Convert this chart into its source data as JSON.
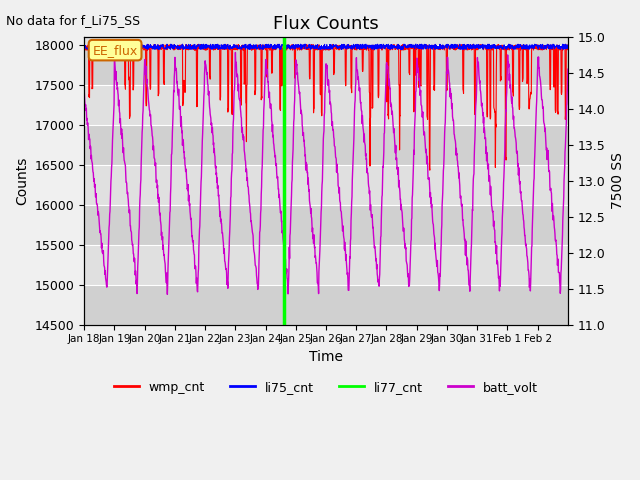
{
  "title": "Flux Counts",
  "subtitle": "No data for f_Li75_SS",
  "xlabel": "Time",
  "ylabel_left": "Counts",
  "ylabel_right": "7500 SS",
  "ylim_left": [
    14500,
    18100
  ],
  "ylim_right": [
    11.0,
    15.0
  ],
  "annotation_text": "EE_flux",
  "x_tick_labels": [
    "Jan 18",
    "Jan 19",
    "Jan 20",
    "Jan 21",
    "Jan 22",
    "Jan 23",
    "Jan 24",
    "Jan 25",
    "Jan 26",
    "Jan 27",
    "Jan 28",
    "Jan 29",
    "Jan 30",
    "Jan 31",
    "Feb 1",
    "Feb 2"
  ],
  "yticks_left": [
    14500,
    15000,
    15500,
    16000,
    16500,
    17000,
    17500,
    18000
  ],
  "yticks_right": [
    11.0,
    11.5,
    12.0,
    12.5,
    13.0,
    13.5,
    14.0,
    14.5,
    15.0
  ],
  "fig_facecolor": "#f0f0f0",
  "ax_facecolor": "#e0e0e0",
  "band_colors": [
    "#d0d0d0",
    "#e0e0e0"
  ],
  "wmp_color": "#ff0000",
  "li75_color": "#0000ff",
  "li77_color": "#00ff00",
  "batt_color": "#cc00cc",
  "legend_entries": [
    "wmp_cnt",
    "li75_cnt",
    "li77_cnt",
    "batt_volt"
  ],
  "n_days": 16,
  "li77_day": 6.6
}
